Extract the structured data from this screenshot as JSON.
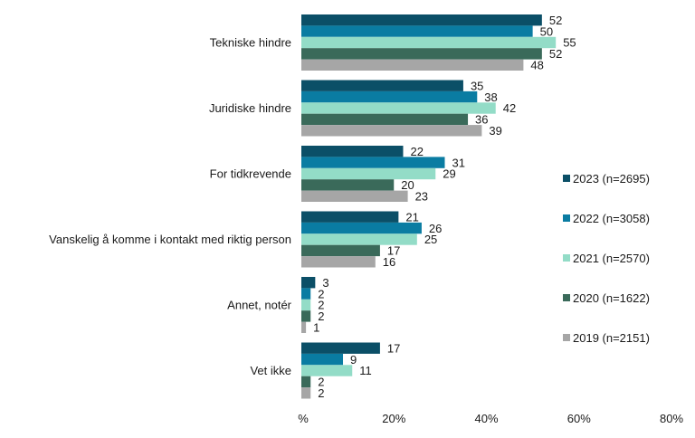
{
  "chart_data": {
    "type": "bar",
    "orientation": "horizontal",
    "categories": [
      "Tekniske hindre",
      "Juridiske hindre",
      "For tidkrevende",
      "Vanskelig å komme i kontakt med riktig person",
      "Annet, notér",
      "Vet ikke"
    ],
    "series": [
      {
        "name": "2023 (n=2695)",
        "color": "#0b4f67",
        "values": [
          52,
          35,
          22,
          21,
          3,
          17
        ]
      },
      {
        "name": "2022 (n=3058)",
        "color": "#0a7ca2",
        "values": [
          50,
          38,
          31,
          26,
          2,
          9
        ]
      },
      {
        "name": "2021 (n=2570)",
        "color": "#93dcc7",
        "values": [
          55,
          42,
          29,
          25,
          2,
          11
        ]
      },
      {
        "name": "2020 (n=1622)",
        "color": "#3a6a5a",
        "values": [
          52,
          36,
          20,
          17,
          2,
          2
        ]
      },
      {
        "name": "2019 (n=2151)",
        "color": "#a6a6a6",
        "values": [
          48,
          39,
          23,
          16,
          1,
          2
        ]
      }
    ],
    "xlim": [
      0,
      80
    ],
    "x_ticks": [
      "%",
      "20%",
      "40%",
      "60%",
      "80%"
    ],
    "grid": false,
    "legend_position": "right",
    "data_labels": true
  }
}
